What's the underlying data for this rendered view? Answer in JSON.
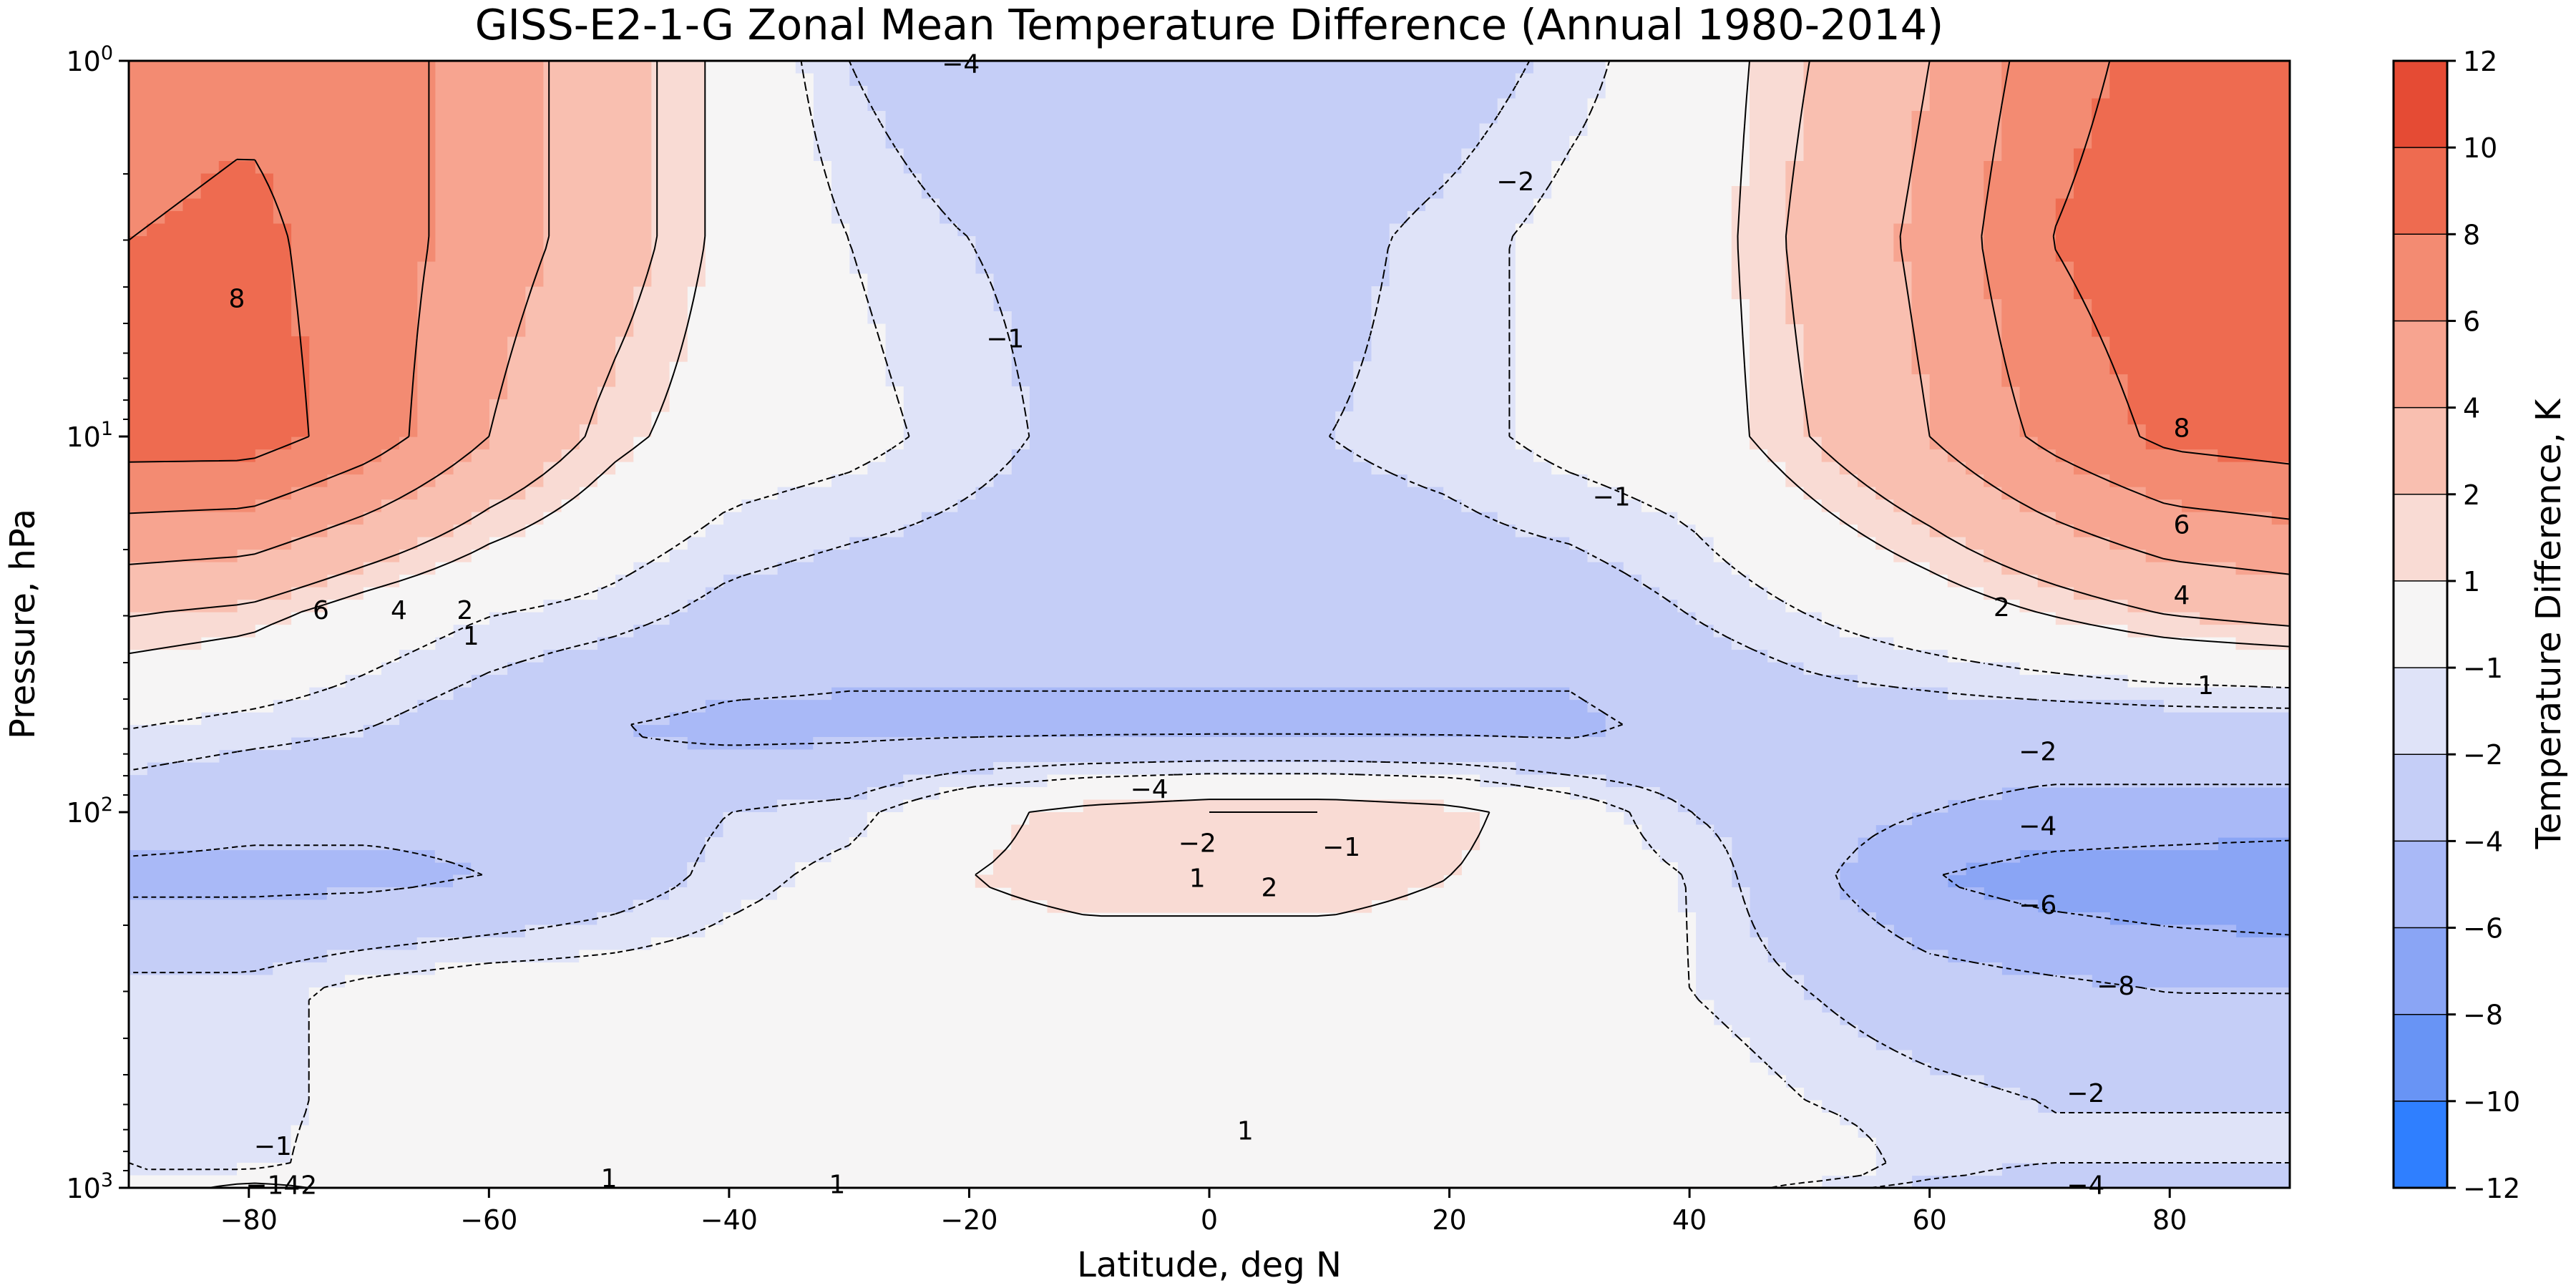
{
  "chart_data": {
    "type": "heatmap",
    "title": "GISS-E2-1-G Zonal Mean Temperature Difference (Annual 1980-2014)",
    "xlabel": "Latitude, deg N",
    "ylabel": "Pressure, hPa",
    "colorbar_label": "Temperature Difference, K",
    "xlim": [
      -90,
      90
    ],
    "ylim": [
      1,
      1000
    ],
    "y_scale": "log",
    "y_inverted": true,
    "x_ticks": [
      -80,
      -60,
      -40,
      -20,
      0,
      20,
      40,
      60,
      80
    ],
    "x_tick_labels": [
      "−80",
      "−60",
      "−40",
      "−20",
      "0",
      "20",
      "40",
      "60",
      "80"
    ],
    "y_ticks": [
      {
        "value": 1,
        "base": "10",
        "exp": "0"
      },
      {
        "value": 10,
        "base": "10",
        "exp": "1"
      },
      {
        "value": 100,
        "base": "10",
        "exp": "2"
      },
      {
        "value": 1000,
        "base": "10",
        "exp": "3"
      }
    ],
    "levels": [
      -12,
      -10,
      -8,
      -6,
      -4,
      -2,
      -1,
      1,
      2,
      4,
      6,
      8,
      10,
      12
    ],
    "level_labels": [
      "−12",
      "−10",
      "−8",
      "−6",
      "−4",
      "−2",
      "−1",
      "1",
      "2",
      "4",
      "6",
      "8",
      "10",
      "12"
    ],
    "level_colors": [
      "#2f7fff",
      "#6894f5",
      "#8aa5f5",
      "#a9b9f7",
      "#c5cef7",
      "#dfe3f8",
      "#f6f5f5",
      "#f9dbd4",
      "#f9bfb0",
      "#f7a490",
      "#f38b72",
      "#ee6b50",
      "#e54b34"
    ],
    "fields": {
      "lat": [
        -90,
        -80,
        -70,
        -60,
        -50,
        -40,
        -30,
        -20,
        -10,
        0,
        10,
        20,
        30,
        40,
        50,
        60,
        70,
        80,
        90
      ],
      "pressure": [
        1,
        3,
        10,
        30,
        60,
        100,
        150,
        300,
        600,
        900,
        1000
      ],
      "values": [
        [
          7,
          7.5,
          7,
          5,
          3,
          0.5,
          -2,
          -3.5,
          -4,
          -4,
          -3.5,
          -3,
          -1.5,
          0,
          2,
          4,
          7,
          9,
          10
        ],
        [
          8,
          8.5,
          7,
          5,
          3,
          0.5,
          -1,
          -2,
          -2.5,
          -2.5,
          -2.5,
          -1.5,
          -0.5,
          0,
          2.5,
          4.5,
          8,
          9.5,
          10
        ],
        [
          9,
          9,
          7,
          4,
          1.5,
          0,
          -0.5,
          -1.5,
          -2.5,
          -2.5,
          -2,
          -1.5,
          -0.5,
          0,
          2,
          4,
          6.5,
          8.5,
          9
        ],
        [
          2,
          1.5,
          0,
          -1,
          -1.5,
          -2.5,
          -3,
          -3,
          -3,
          -3,
          -3,
          -3,
          -3,
          -2,
          -1,
          0,
          1,
          2,
          2.5
        ],
        [
          -1,
          -1.5,
          -2,
          -3,
          -4,
          -4.5,
          -4.5,
          -4.5,
          -4.5,
          -4.5,
          -4.5,
          -4.5,
          -4.5,
          -3.5,
          -3,
          -3,
          -3,
          -3,
          -3
        ],
        [
          -3,
          -3.5,
          -3.5,
          -3.5,
          -3,
          -2,
          -1.5,
          0.5,
          1.5,
          2,
          2,
          1.5,
          0,
          -2,
          -3,
          -4,
          -4.5,
          -4.5,
          -4.5
        ],
        [
          -4.5,
          -4.5,
          -4.5,
          -4,
          -3,
          -1.5,
          -0.5,
          1,
          1.5,
          1.5,
          1.5,
          1,
          0,
          -1,
          -3.5,
          -6,
          -7,
          -7.5,
          -8
        ],
        [
          -1.5,
          -1.5,
          -0.5,
          0,
          0,
          0,
          0,
          0,
          0,
          0,
          0,
          0,
          0,
          -1,
          -2,
          -3,
          -3.5,
          -4,
          -4
        ],
        [
          -1,
          -1.5,
          -0.5,
          0,
          0,
          0,
          0,
          0,
          0,
          0.5,
          0.5,
          0,
          0,
          0,
          -1,
          -1.5,
          -2,
          -2,
          -2
        ],
        [
          -1,
          -1.5,
          0,
          0,
          0,
          0,
          0,
          0.5,
          0.5,
          0,
          0,
          0,
          0,
          0,
          0,
          -1.5,
          -2,
          -2,
          -2
        ],
        [
          -1,
          2,
          0,
          0.5,
          0.5,
          0.5,
          1,
          1,
          1,
          1,
          0.5,
          0,
          0,
          0,
          -1.5,
          -2.5,
          -4,
          -4,
          -4
        ]
      ]
    },
    "contour_labels": [
      {
        "x": -20.7,
        "p": 1.02,
        "text": "−4"
      },
      {
        "x": 25.5,
        "p": 2.1,
        "text": "−2"
      },
      {
        "x": -17,
        "p": 5.5,
        "text": "−1"
      },
      {
        "x": -81,
        "p": 4.3,
        "text": "8"
      },
      {
        "x": -74,
        "p": 29,
        "text": "6"
      },
      {
        "x": -67.5,
        "p": 29,
        "text": "4"
      },
      {
        "x": -62,
        "p": 29,
        "text": "2"
      },
      {
        "x": -61.5,
        "p": 34,
        "text": "1"
      },
      {
        "x": 33.5,
        "p": 14.5,
        "text": "−1"
      },
      {
        "x": 81,
        "p": 9.5,
        "text": "8"
      },
      {
        "x": 81,
        "p": 17.2,
        "text": "6"
      },
      {
        "x": 81,
        "p": 26.5,
        "text": "4"
      },
      {
        "x": 66,
        "p": 28.5,
        "text": "2"
      },
      {
        "x": 83,
        "p": 46,
        "text": "1"
      },
      {
        "x": 69,
        "p": 69,
        "text": "−2"
      },
      {
        "x": 69,
        "p": 109,
        "text": "−4"
      },
      {
        "x": 69,
        "p": 177,
        "text": "−6"
      },
      {
        "x": 75.5,
        "p": 290,
        "text": "−8"
      },
      {
        "x": -5,
        "p": 87,
        "text": "−4"
      },
      {
        "x": -1,
        "p": 121,
        "text": "−2"
      },
      {
        "x": 11,
        "p": 124,
        "text": "−1"
      },
      {
        "x": -1,
        "p": 150,
        "text": "1"
      },
      {
        "x": 5,
        "p": 159,
        "text": "2"
      },
      {
        "x": 73,
        "p": 560,
        "text": "−2"
      },
      {
        "x": 3,
        "p": 705,
        "text": "1"
      },
      {
        "x": -78,
        "p": 775,
        "text": "−1"
      },
      {
        "x": -78,
        "p": 985,
        "text": "−14"
      },
      {
        "x": -75,
        "p": 985,
        "text": "2"
      },
      {
        "x": -50,
        "p": 945,
        "text": "1"
      },
      {
        "x": -31,
        "p": 980,
        "text": "1"
      },
      {
        "x": 73,
        "p": 985,
        "text": "−4"
      }
    ]
  }
}
